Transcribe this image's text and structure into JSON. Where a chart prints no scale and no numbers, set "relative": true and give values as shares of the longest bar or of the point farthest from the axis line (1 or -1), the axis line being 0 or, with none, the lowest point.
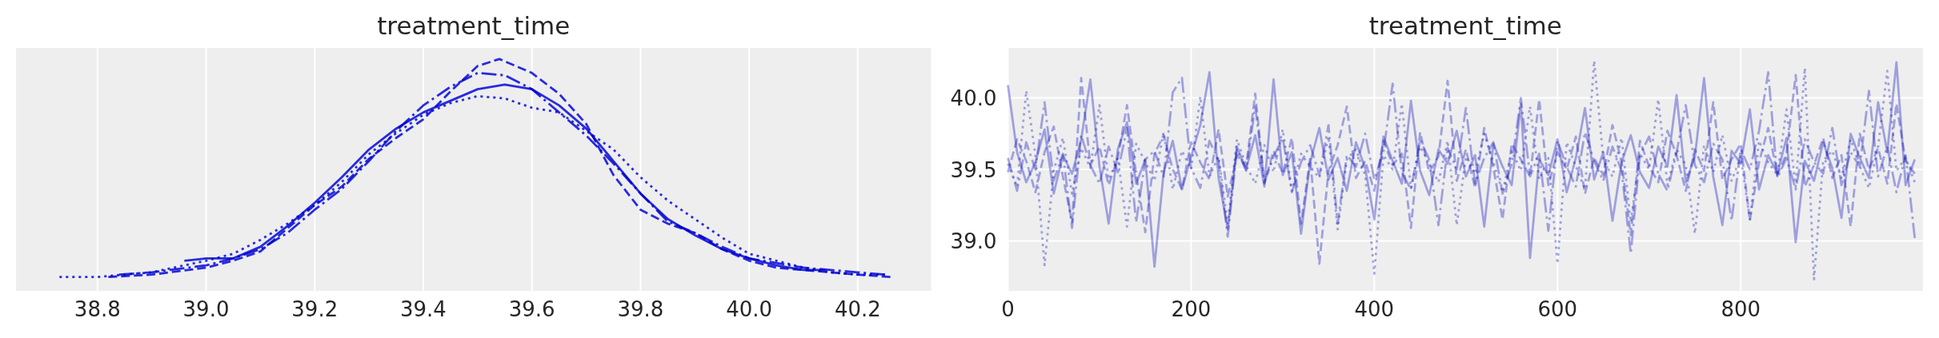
{
  "chart_data": [
    {
      "type": "line",
      "title": "treatment_time",
      "relative": true,
      "tick_labels": "x",
      "xlim": [
        38.65,
        40.335
      ],
      "xticks": [
        38.8,
        {
          "value": 39,
          "label": "39.0"
        },
        39.2,
        39.4,
        39.6,
        39.8,
        {
          "value": 40,
          "label": "40.0"
        },
        40.2
      ],
      "grid": "x",
      "series": [
        {
          "color": "#2a2eec",
          "line_style": "solid",
          "x": [
            38.96,
            39.0,
            39.05,
            39.1,
            39.15,
            39.2,
            39.25,
            39.3,
            39.35,
            39.4,
            39.45,
            39.5,
            39.55,
            39.6,
            39.65,
            39.7,
            39.75,
            39.8,
            39.85,
            39.9,
            39.95,
            40.0,
            40.05,
            40.1,
            40.14
          ],
          "values": [
            0.13,
            0.14,
            0.14,
            0.19,
            0.28,
            0.38,
            0.49,
            0.61,
            0.7,
            0.77,
            0.82,
            0.87,
            0.89,
            0.87,
            0.8,
            0.7,
            0.56,
            0.42,
            0.31,
            0.24,
            0.18,
            0.14,
            0.11,
            0.09,
            0.09
          ]
        },
        {
          "color": "#2a2eec",
          "line_style": "dashed",
          "x": [
            38.82,
            38.9,
            39.0,
            39.05,
            39.1,
            39.15,
            39.2,
            39.25,
            39.3,
            39.35,
            39.4,
            39.45,
            39.5,
            39.54,
            39.6,
            39.65,
            39.7,
            39.75,
            39.8,
            39.85,
            39.9,
            39.95,
            40.0,
            40.05,
            40.1,
            40.15,
            40.2,
            40.26
          ],
          "values": [
            0.06,
            0.07,
            0.1,
            0.13,
            0.17,
            0.27,
            0.37,
            0.45,
            0.57,
            0.66,
            0.74,
            0.86,
            0.97,
            1.0,
            0.94,
            0.85,
            0.72,
            0.5,
            0.35,
            0.29,
            0.25,
            0.18,
            0.13,
            0.1,
            0.09,
            0.08,
            0.07,
            0.06
          ]
        },
        {
          "color": "#2a2eec",
          "line_style": "dashdot",
          "x": [
            38.84,
            38.9,
            39.0,
            39.05,
            39.1,
            39.15,
            39.2,
            39.25,
            39.3,
            39.35,
            39.4,
            39.45,
            39.5,
            39.55,
            39.6,
            39.65,
            39.7,
            39.75,
            39.8,
            39.85,
            39.9,
            39.95,
            40.0,
            40.05,
            40.1,
            40.15,
            40.2,
            40.25
          ],
          "values": [
            0.07,
            0.08,
            0.11,
            0.14,
            0.18,
            0.25,
            0.35,
            0.44,
            0.56,
            0.69,
            0.8,
            0.88,
            0.94,
            0.93,
            0.87,
            0.77,
            0.67,
            0.55,
            0.42,
            0.3,
            0.25,
            0.19,
            0.14,
            0.12,
            0.1,
            0.09,
            0.08,
            0.07
          ]
        },
        {
          "color": "#2a2eec",
          "line_style": "dotted",
          "x": [
            38.73,
            38.8,
            38.9,
            39.0,
            39.05,
            39.1,
            39.15,
            39.2,
            39.25,
            39.3,
            39.35,
            39.4,
            39.45,
            39.5,
            39.55,
            39.6,
            39.65,
            39.7,
            39.75,
            39.8,
            39.85,
            39.9,
            39.95,
            40.0,
            40.05,
            40.1,
            40.15,
            40.2,
            40.25
          ],
          "values": [
            0.06,
            0.06,
            0.08,
            0.13,
            0.16,
            0.22,
            0.29,
            0.37,
            0.47,
            0.59,
            0.68,
            0.76,
            0.81,
            0.84,
            0.83,
            0.79,
            0.77,
            0.69,
            0.61,
            0.49,
            0.39,
            0.31,
            0.23,
            0.16,
            0.13,
            0.1,
            0.08,
            0.07,
            0.07
          ]
        }
      ]
    },
    {
      "type": "line",
      "title": "treatment_time",
      "xlim": [
        0,
        999
      ],
      "xticks": [
        0,
        200,
        400,
        600,
        800
      ],
      "ylim": [
        38.65,
        40.35
      ],
      "yticks": [
        {
          "value": 39,
          "label": "39.0"
        },
        39.5,
        {
          "value": 40,
          "label": "40.0"
        }
      ],
      "grid": true,
      "x": [
        0,
        10,
        20,
        30,
        40,
        50,
        60,
        70,
        80,
        90,
        100,
        110,
        120,
        130,
        140,
        150,
        160,
        170,
        180,
        190,
        200,
        210,
        220,
        230,
        240,
        250,
        260,
        270,
        280,
        290,
        300,
        310,
        320,
        330,
        340,
        350,
        360,
        370,
        380,
        390,
        400,
        410,
        420,
        430,
        440,
        450,
        460,
        470,
        480,
        490,
        500,
        510,
        520,
        530,
        540,
        550,
        560,
        570,
        580,
        590,
        600,
        610,
        620,
        630,
        640,
        650,
        660,
        670,
        680,
        690,
        700,
        710,
        720,
        730,
        740,
        750,
        760,
        770,
        780,
        790,
        800,
        810,
        820,
        830,
        840,
        850,
        860,
        870,
        880,
        890,
        900,
        910,
        920,
        930,
        940,
        950,
        960,
        970,
        980,
        990
      ],
      "series": [
        {
          "color": "#a9abed",
          "line_style": "solid",
          "values": [
            40.09,
            39.62,
            39.41,
            39.55,
            39.78,
            39.33,
            39.6,
            39.47,
            39.71,
            40.13,
            39.52,
            39.12,
            39.64,
            39.83,
            39.4,
            39.57,
            38.82,
            39.48,
            39.7,
            39.36,
            39.59,
            39.81,
            40.18,
            39.44,
            39.08,
            39.66,
            39.5,
            39.74,
            39.38,
            40.13,
            39.46,
            39.62,
            39.05,
            39.55,
            39.79,
            39.43,
            39.58,
            39.35,
            39.69,
            39.51,
            39.15,
            39.73,
            39.56,
            39.4,
            39.98,
            39.49,
            39.32,
            39.64,
            39.54,
            39.77,
            39.45,
            39.6,
            39.1,
            39.68,
            39.52,
            39.39,
            39.96,
            38.88,
            39.57,
            39.46,
            39.71,
            39.34,
            39.58,
            39.93,
            39.43,
            39.62,
            39.14,
            39.55,
            39.74,
            39.48,
            39.37,
            39.66,
            39.52,
            40.02,
            39.41,
            39.59,
            40.14,
            39.45,
            39.11,
            39.63,
            39.54,
            39.92,
            39.36,
            39.6,
            39.47,
            39.72,
            38.99,
            39.56,
            39.42,
            39.69,
            39.51,
            39.16,
            39.75,
            39.58,
            39.44,
            39.97,
            39.62,
            40.25,
            39.39,
            39.57
          ]
        },
        {
          "color": "#a9abed",
          "line_style": "dashed",
          "values": [
            39.48,
            39.71,
            39.56,
            39.34,
            39.62,
            39.8,
            39.45,
            39.13,
            40.14,
            39.53,
            39.66,
            39.39,
            39.58,
            39.95,
            39.47,
            39.06,
            39.61,
            39.74,
            39.5,
            39.36,
            39.69,
            39.55,
            39.43,
            39.78,
            39.31,
            39.6,
            39.52,
            40.03,
            39.4,
            39.63,
            39.47,
            39.72,
            39.12,
            39.58,
            38.84,
            39.49,
            39.67,
            39.94,
            39.44,
            39.56,
            39.35,
            39.7,
            39.53,
            39.61,
            39.09,
            39.76,
            39.48,
            39.59,
            40.12,
            39.42,
            39.64,
            39.37,
            39.79,
            39.51,
            39.15,
            39.68,
            39.57,
            39.45,
            39.99,
            39.39,
            39.62,
            39.5,
            39.73,
            39.33,
            39.58,
            39.46,
            39.81,
            39.55,
            39.04,
            39.7,
            39.52,
            39.41,
            39.77,
            39.6,
            39.35,
            39.64,
            39.49,
            39.97,
            39.43,
            39.57,
            39.68,
            39.14,
            39.55,
            39.79,
            39.46,
            39.61,
            40.16,
            39.38,
            39.53,
            39.72,
            39.44,
            39.6,
            39.1,
            39.75,
            39.5,
            39.65,
            39.4,
            39.96,
            39.56,
            39.47
          ]
        },
        {
          "color": "#a9abed",
          "line_style": "dashdot",
          "values": [
            39.58,
            39.35,
            39.69,
            39.5,
            39.97,
            39.42,
            39.61,
            39.09,
            39.74,
            39.53,
            39.4,
            39.66,
            39.48,
            39.79,
            39.13,
            39.57,
            39.63,
            39.45,
            40.04,
            40.14,
            39.51,
            39.37,
            39.7,
            39.56,
            39.03,
            39.64,
            39.49,
            39.94,
            39.41,
            39.59,
            39.72,
            39.34,
            39.55,
            39.67,
            39.46,
            39.81,
            39.12,
            39.6,
            39.52,
            39.75,
            39.43,
            39.62,
            40.1,
            39.48,
            39.36,
            39.71,
            39.57,
            39.11,
            39.65,
            39.5,
            39.93,
            39.4,
            39.58,
            39.69,
            39.33,
            39.54,
            40.0,
            39.45,
            39.61,
            39.07,
            39.7,
            39.52,
            39.38,
            39.76,
            39.56,
            39.42,
            39.66,
            39.49,
            38.91,
            39.6,
            39.73,
            39.47,
            39.35,
            39.62,
            39.95,
            39.53,
            39.41,
            39.68,
            39.57,
            39.14,
            39.64,
            39.5,
            39.77,
            40.18,
            39.44,
            39.58,
            39.36,
            39.71,
            39.55,
            39.47,
            39.79,
            39.39,
            39.62,
            39.52,
            40.05,
            39.45,
            39.66,
            39.34,
            39.6,
            39.02
          ]
        },
        {
          "color": "#a9abed",
          "line_style": "dotted",
          "values": [
            39.54,
            39.38,
            40.05,
            39.6,
            38.83,
            39.49,
            39.72,
            39.33,
            39.65,
            39.51,
            39.95,
            39.43,
            39.58,
            39.1,
            39.68,
            39.55,
            39.42,
            39.76,
            39.36,
            39.63,
            39.5,
            40.01,
            39.45,
            39.59,
            39.12,
            39.71,
            39.53,
            39.4,
            39.67,
            39.48,
            39.78,
            39.35,
            39.61,
            39.52,
            39.44,
            39.73,
            39.08,
            39.57,
            39.64,
            39.46,
            38.77,
            39.6,
            39.5,
            39.96,
            39.37,
            39.66,
            39.54,
            39.41,
            39.7,
            39.11,
            39.59,
            39.47,
            39.75,
            39.55,
            39.34,
            39.63,
            39.49,
            39.94,
            39.43,
            39.58,
            38.84,
            39.69,
            39.52,
            39.36,
            40.26,
            39.57,
            39.45,
            39.72,
            39.13,
            39.61,
            39.5,
            39.99,
            39.39,
            39.64,
            39.53,
            39.05,
            39.67,
            39.48,
            39.74,
            39.42,
            39.59,
            39.15,
            39.7,
            39.55,
            39.46,
            39.92,
            39.38,
            40.21,
            38.73,
            39.56,
            39.63,
            39.44,
            39.71,
            39.52,
            39.37,
            39.66,
            40.19,
            39.49,
            39.58,
            39.41
          ]
        }
      ]
    }
  ]
}
